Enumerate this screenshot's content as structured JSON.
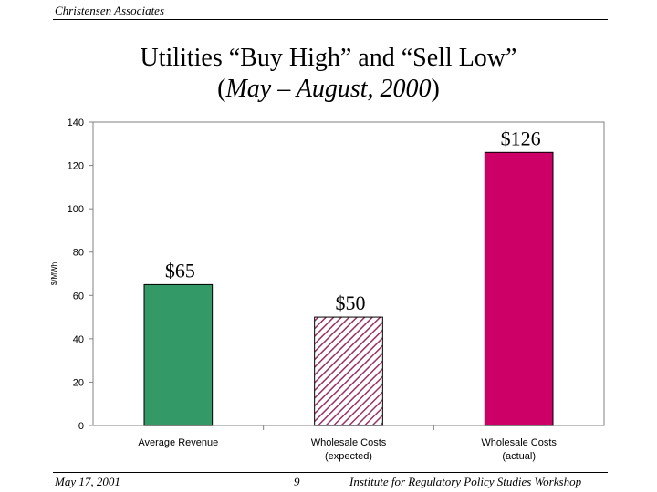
{
  "header": {
    "organization": "Christensen Associates"
  },
  "slide": {
    "title": "Utilities “Buy High” and “Sell Low”",
    "subtitle_open": "(",
    "subtitle_text": "May – August, 2000",
    "subtitle_close": ")"
  },
  "chart_data": {
    "type": "bar",
    "ylabel": "$/MWh",
    "ylim": [
      0,
      140
    ],
    "yticks": [
      0,
      20,
      40,
      60,
      80,
      100,
      120,
      140
    ],
    "grid": false,
    "legend": "none",
    "categories": [
      [
        "Average Revenue"
      ],
      [
        "Wholesale Costs",
        "(expected)"
      ],
      [
        "Wholesale Costs",
        "(actual)"
      ]
    ],
    "values": [
      65,
      50,
      126
    ],
    "data_labels": [
      "$65",
      "$50",
      "$126"
    ],
    "colors": [
      "#339966",
      "#993366",
      "#cc0066"
    ],
    "patterns": [
      "solid",
      "diagonal-hatch",
      "solid"
    ]
  },
  "footer": {
    "date": "May 17, 2001",
    "page": "9",
    "event": "Institute for Regulatory Policy Studies Workshop"
  }
}
